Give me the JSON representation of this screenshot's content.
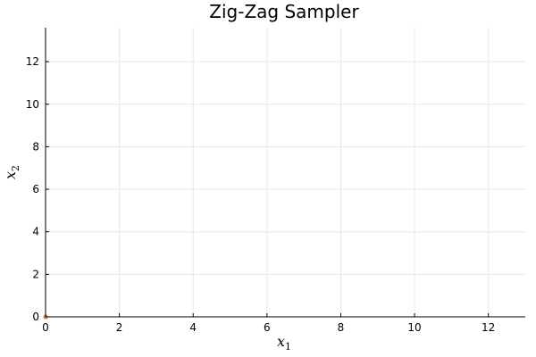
{
  "chart_data": {
    "type": "scatter",
    "title": "Zig-Zag Sampler",
    "xlabel": {
      "base": "x",
      "sub": "1"
    },
    "ylabel": {
      "base": "x",
      "sub": "2"
    },
    "xlim": [
      0,
      13
    ],
    "ylim": [
      0,
      13.6
    ],
    "xticks": [
      0,
      2,
      4,
      6,
      8,
      10,
      12
    ],
    "yticks": [
      0,
      2,
      4,
      6,
      8,
      10,
      12
    ],
    "grid": true,
    "legend": "none",
    "series": [
      {
        "points": [
          [
            0,
            0
          ]
        ],
        "color": "#e26f46"
      }
    ]
  }
}
